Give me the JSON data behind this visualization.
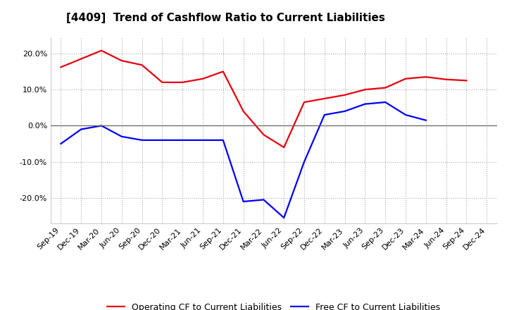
{
  "title": "[4409]  Trend of Cashflow Ratio to Current Liabilities",
  "x_labels": [
    "Sep-19",
    "Dec-19",
    "Mar-20",
    "Jun-20",
    "Sep-20",
    "Dec-20",
    "Mar-21",
    "Jun-21",
    "Sep-21",
    "Dec-21",
    "Mar-22",
    "Jun-22",
    "Sep-22",
    "Dec-22",
    "Mar-23",
    "Jun-23",
    "Sep-23",
    "Dec-23",
    "Mar-24",
    "Jun-24",
    "Sep-24",
    "Dec-24"
  ],
  "operating_cf": [
    0.162,
    0.185,
    0.208,
    0.18,
    0.168,
    0.12,
    0.12,
    0.13,
    0.15,
    0.04,
    -0.025,
    -0.06,
    0.065,
    0.075,
    0.085,
    0.1,
    0.105,
    0.13,
    0.135,
    0.128,
    0.125,
    null
  ],
  "free_cf": [
    -0.05,
    -0.01,
    0.0,
    -0.03,
    -0.04,
    -0.04,
    -0.04,
    -0.04,
    -0.04,
    -0.21,
    -0.205,
    -0.255,
    -0.1,
    0.03,
    0.04,
    0.06,
    0.065,
    0.03,
    0.015,
    null,
    null,
    null
  ],
  "operating_cf_color": "#e8000d",
  "free_cf_color": "#0000ff",
  "background_color": "#ffffff",
  "plot_bg_color": "#ffffff",
  "grid_color": "#aaaaaa",
  "ylim": [
    -0.27,
    0.245
  ],
  "yticks": [
    -0.2,
    -0.1,
    0.0,
    0.1,
    0.2
  ],
  "legend_operating": "Operating CF to Current Liabilities",
  "legend_free": "Free CF to Current Liabilities",
  "title_fontsize": 11,
  "tick_fontsize": 8,
  "legend_fontsize": 9
}
